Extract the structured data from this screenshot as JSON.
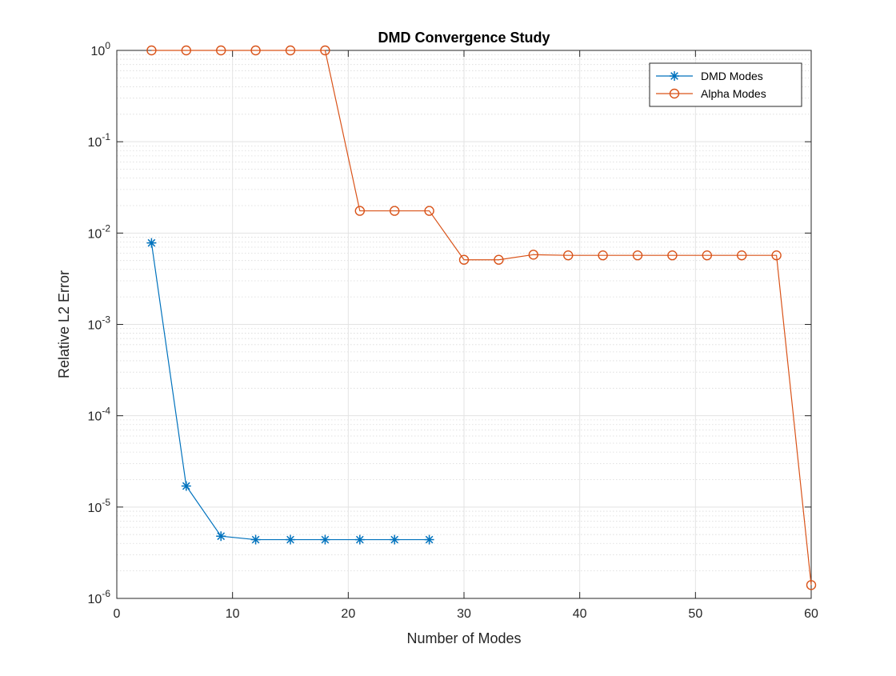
{
  "chart_data": {
    "type": "line",
    "title": "DMD Convergence Study",
    "xlabel": "Number of Modes",
    "ylabel": "Relative L2 Error",
    "xlim": [
      0,
      60
    ],
    "ylim": [
      1e-06,
      1
    ],
    "yscale": "log",
    "grid": true,
    "minor_grid": true,
    "legend_position": "top-right",
    "x_ticks": [
      "0",
      "10",
      "20",
      "30",
      "40",
      "50",
      "60"
    ],
    "y_ticks": [
      {
        "base": "10",
        "exp": "0"
      },
      {
        "base": "10",
        "exp": "-1"
      },
      {
        "base": "10",
        "exp": "-2"
      },
      {
        "base": "10",
        "exp": "-3"
      },
      {
        "base": "10",
        "exp": "-4"
      },
      {
        "base": "10",
        "exp": "-5"
      },
      {
        "base": "10",
        "exp": "-6"
      }
    ],
    "series": [
      {
        "name": "DMD Modes",
        "color": "#0072BD",
        "marker": "asterisk",
        "x": [
          3,
          6,
          9,
          12,
          15,
          18,
          21,
          24,
          27
        ],
        "y": [
          0.0078,
          1.7e-05,
          4.8e-06,
          4.4e-06,
          4.4e-06,
          4.4e-06,
          4.4e-06,
          4.4e-06,
          4.4e-06
        ]
      },
      {
        "name": "Alpha Modes",
        "color": "#D95319",
        "marker": "circle",
        "x": [
          3,
          6,
          9,
          12,
          15,
          18,
          21,
          24,
          27,
          30,
          33,
          36,
          39,
          42,
          45,
          48,
          51,
          54,
          57,
          60
        ],
        "y": [
          1,
          1,
          1,
          1,
          1,
          1,
          0.0175,
          0.0175,
          0.0175,
          0.0051,
          0.0051,
          0.0058,
          0.0057,
          0.0057,
          0.0057,
          0.0057,
          0.0057,
          0.0057,
          0.0057,
          1.4e-06
        ]
      }
    ]
  }
}
